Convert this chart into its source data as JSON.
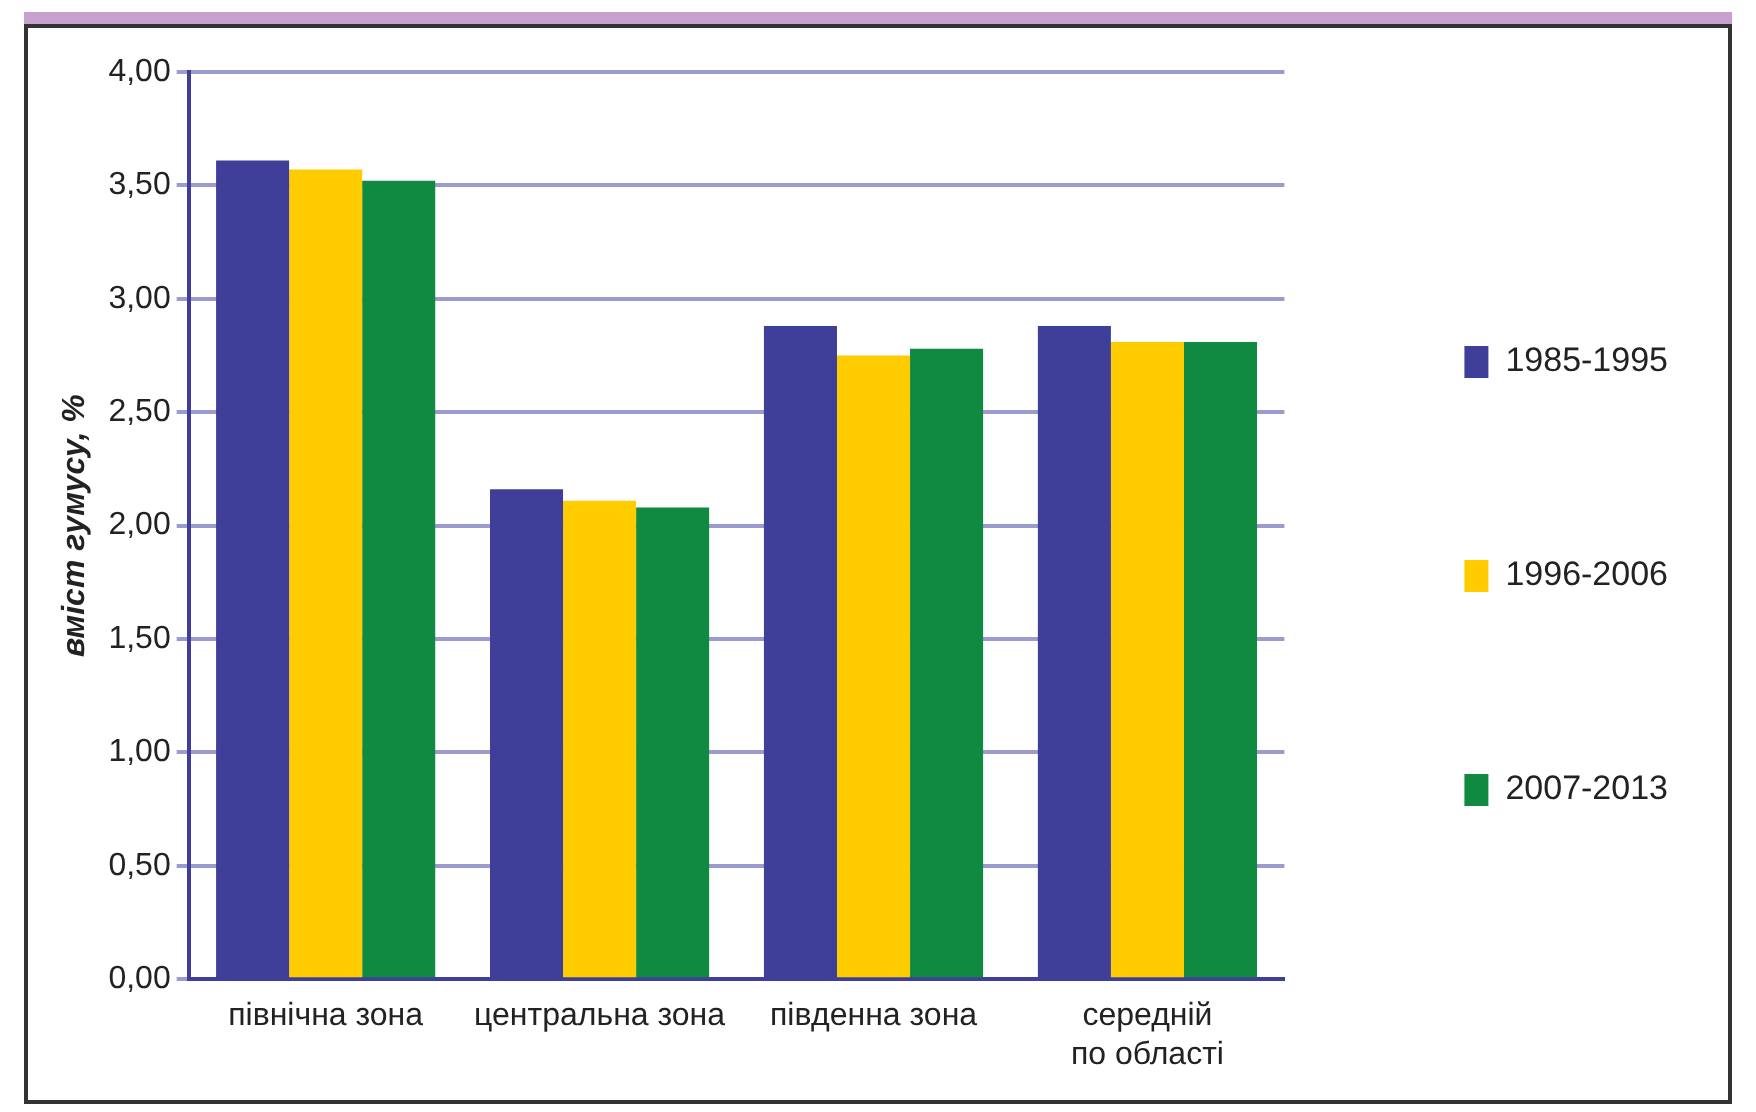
{
  "chart_data": {
    "type": "bar",
    "ylabel": "вміст гумусу, %",
    "categories": [
      "північна зона",
      "центральна зона",
      "південна зона",
      "середній по області"
    ],
    "series": [
      {
        "name": "1985-1995",
        "color": "#3f3f9a",
        "values": [
          3.61,
          2.16,
          2.88,
          2.88
        ]
      },
      {
        "name": "1996-2006",
        "color": "#ffcc00",
        "values": [
          3.57,
          2.11,
          2.75,
          2.81
        ]
      },
      {
        "name": "2007-2013",
        "color": "#108a40",
        "values": [
          3.52,
          2.08,
          2.78,
          2.81
        ]
      }
    ],
    "ylim": [
      0,
      4
    ],
    "yticks": [
      {
        "value": 0,
        "label": "0,00"
      },
      {
        "value": 0.5,
        "label": "0,50"
      },
      {
        "value": 1,
        "label": "1,00"
      },
      {
        "value": 1.5,
        "label": "1,50"
      },
      {
        "value": 2,
        "label": "2,00"
      },
      {
        "value": 2.5,
        "label": "2,50"
      },
      {
        "value": 3,
        "label": "3,00"
      },
      {
        "value": 3.5,
        "label": "3,50"
      },
      {
        "value": 4,
        "label": "4,00"
      }
    ],
    "grid": "y",
    "legend": "right"
  }
}
